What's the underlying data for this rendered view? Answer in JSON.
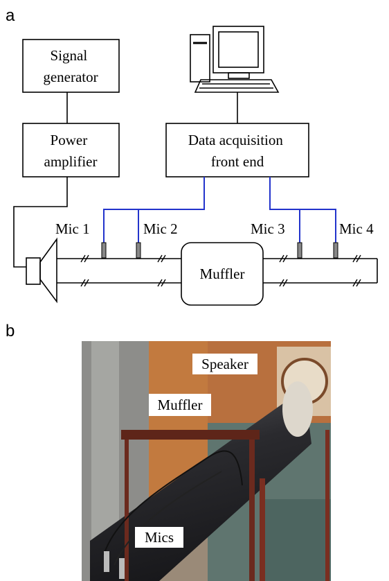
{
  "panels": [
    {
      "label": "a",
      "boxes": [
        {
          "lines": [
            "Signal",
            "generator"
          ]
        },
        {
          "lines": [
            "Power",
            "amplifier"
          ]
        },
        {
          "lines": [
            "Data acquisition",
            "front end"
          ]
        }
      ],
      "mics": [
        "Mic 1",
        "Mic 2",
        "Mic 3",
        "Mic 4"
      ],
      "muffler": "Muffler"
    },
    {
      "label": "b",
      "photo_labels": [
        "Speaker",
        "Muffler",
        "Mics"
      ]
    }
  ]
}
